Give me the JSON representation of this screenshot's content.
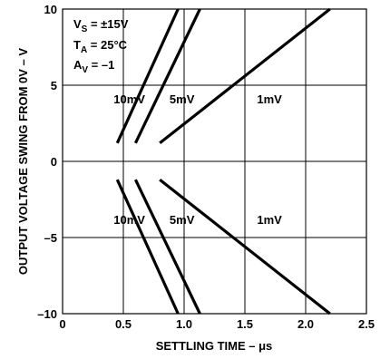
{
  "chart_data": {
    "type": "line",
    "xlabel": "SETTLING TIME – μs",
    "ylabel": "OUTPUT VOLTAGE SWING FROM 0V – V",
    "xlim": [
      0,
      2.5
    ],
    "ylim": [
      -10,
      10
    ],
    "xticks": [
      0,
      0.5,
      1.0,
      1.5,
      2.0,
      2.5
    ],
    "xtick_labels": [
      "0",
      "0.5",
      "1.0",
      "1.5",
      "2.0",
      "2.5"
    ],
    "yticks": [
      -10,
      -5,
      0,
      5,
      10
    ],
    "ytick_labels": [
      "–10",
      "–5",
      "0",
      "5",
      "10"
    ],
    "grid": true,
    "conditions": {
      "vs": {
        "main": "V",
        "sub": "S",
        "rest": " = ±15V"
      },
      "ta": {
        "main": "T",
        "sub": "A",
        "rest": " = 25°C"
      },
      "av": {
        "main": "A",
        "sub": "V",
        "rest": " = –1"
      }
    },
    "series": [
      {
        "name": "10mV",
        "points": [
          [
            0.45,
            1.2
          ],
          [
            0.95,
            10
          ]
        ]
      },
      {
        "name": "5mV",
        "points": [
          [
            0.6,
            1.2
          ],
          [
            1.13,
            10
          ]
        ]
      },
      {
        "name": "1mV",
        "points": [
          [
            0.8,
            1.2
          ],
          [
            2.2,
            10
          ]
        ]
      },
      {
        "name": "10mV",
        "points": [
          [
            0.45,
            -1.2
          ],
          [
            0.95,
            -10
          ]
        ]
      },
      {
        "name": "5mV",
        "points": [
          [
            0.6,
            -1.2
          ],
          [
            1.13,
            -10
          ]
        ]
      },
      {
        "name": "1mV",
        "points": [
          [
            0.8,
            -1.2
          ],
          [
            2.2,
            -10
          ]
        ]
      }
    ],
    "curve_labels": [
      {
        "text": "10mV",
        "x": 0.42,
        "y": 3.8
      },
      {
        "text": "5mV",
        "x": 0.88,
        "y": 3.8
      },
      {
        "text": "1mV",
        "x": 1.6,
        "y": 3.8
      },
      {
        "text": "10mV",
        "x": 0.42,
        "y": -4.1
      },
      {
        "text": "5mV",
        "x": 0.88,
        "y": -4.1
      },
      {
        "text": "1mV",
        "x": 1.6,
        "y": -4.1
      }
    ]
  }
}
